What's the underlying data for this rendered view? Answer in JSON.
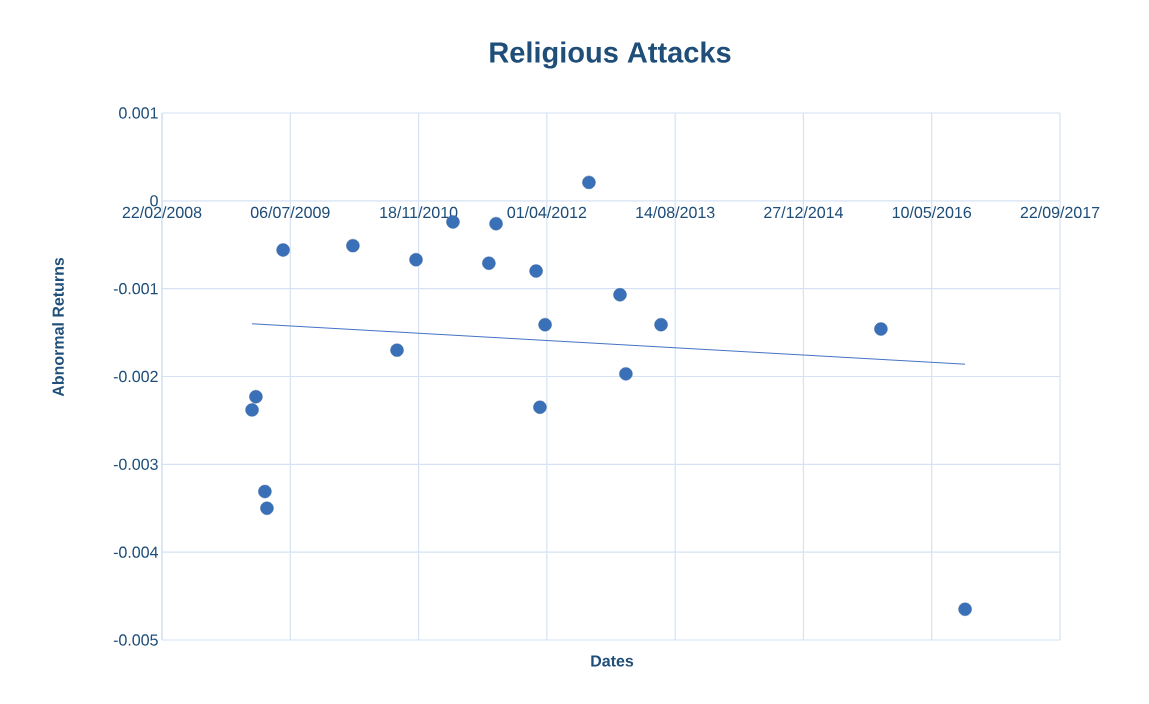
{
  "chart_data": {
    "type": "scatter",
    "title": "Religious Attacks",
    "xlabel": "Dates",
    "ylabel": "Abnormal Returns",
    "x": [
      "2009-02-07",
      "2009-02-22",
      "2009-03-29",
      "2009-04-06",
      "2009-06-08",
      "2010-03-07",
      "2010-08-26",
      "2010-11-08",
      "2011-04-01",
      "2011-08-19",
      "2011-09-16",
      "2012-02-19",
      "2012-03-05",
      "2012-03-25",
      "2012-09-12",
      "2013-01-11",
      "2013-02-03",
      "2013-06-20",
      "2015-10-25",
      "2016-09-17"
    ],
    "series": [
      {
        "color": "#3a70b8",
        "marker": "circle",
        "values": [
          -0.00238,
          -0.00223,
          -0.00331,
          -0.0035,
          -0.00056,
          -0.00051,
          -0.0017,
          -0.00067,
          -0.00024,
          -0.00071,
          -0.00026,
          -0.0008,
          -0.00235,
          -0.00141,
          0.00021,
          -0.00107,
          -0.00197,
          -0.00141,
          -0.00146,
          -0.00465
        ]
      },
      {
        "type": "line",
        "marker": "none",
        "color": "#4472c4",
        "x": [
          "2009-02-07",
          "2016-09-17"
        ],
        "values": [
          -0.0014,
          -0.00186
        ]
      }
    ],
    "xlim": [
      "2008-02-22",
      "2017-09-22"
    ],
    "xticks": [
      {
        "value": "2008-02-22",
        "label": "22/02/2008"
      },
      {
        "value": "2009-07-06",
        "label": "06/07/2009"
      },
      {
        "value": "2010-11-18",
        "label": "18/11/2010"
      },
      {
        "value": "2012-04-01",
        "label": "01/04/2012"
      },
      {
        "value": "2013-08-14",
        "label": "14/08/2013"
      },
      {
        "value": "2014-12-27",
        "label": "27/12/2014"
      },
      {
        "value": "2016-05-10",
        "label": "10/05/2016"
      },
      {
        "value": "2017-09-22",
        "label": "22/09/2017"
      }
    ],
    "ylim": [
      -0.005,
      0.001
    ],
    "yticks": [
      0.001,
      0,
      -0.001,
      -0.002,
      -0.003,
      -0.004,
      -0.005
    ],
    "grid": true
  }
}
